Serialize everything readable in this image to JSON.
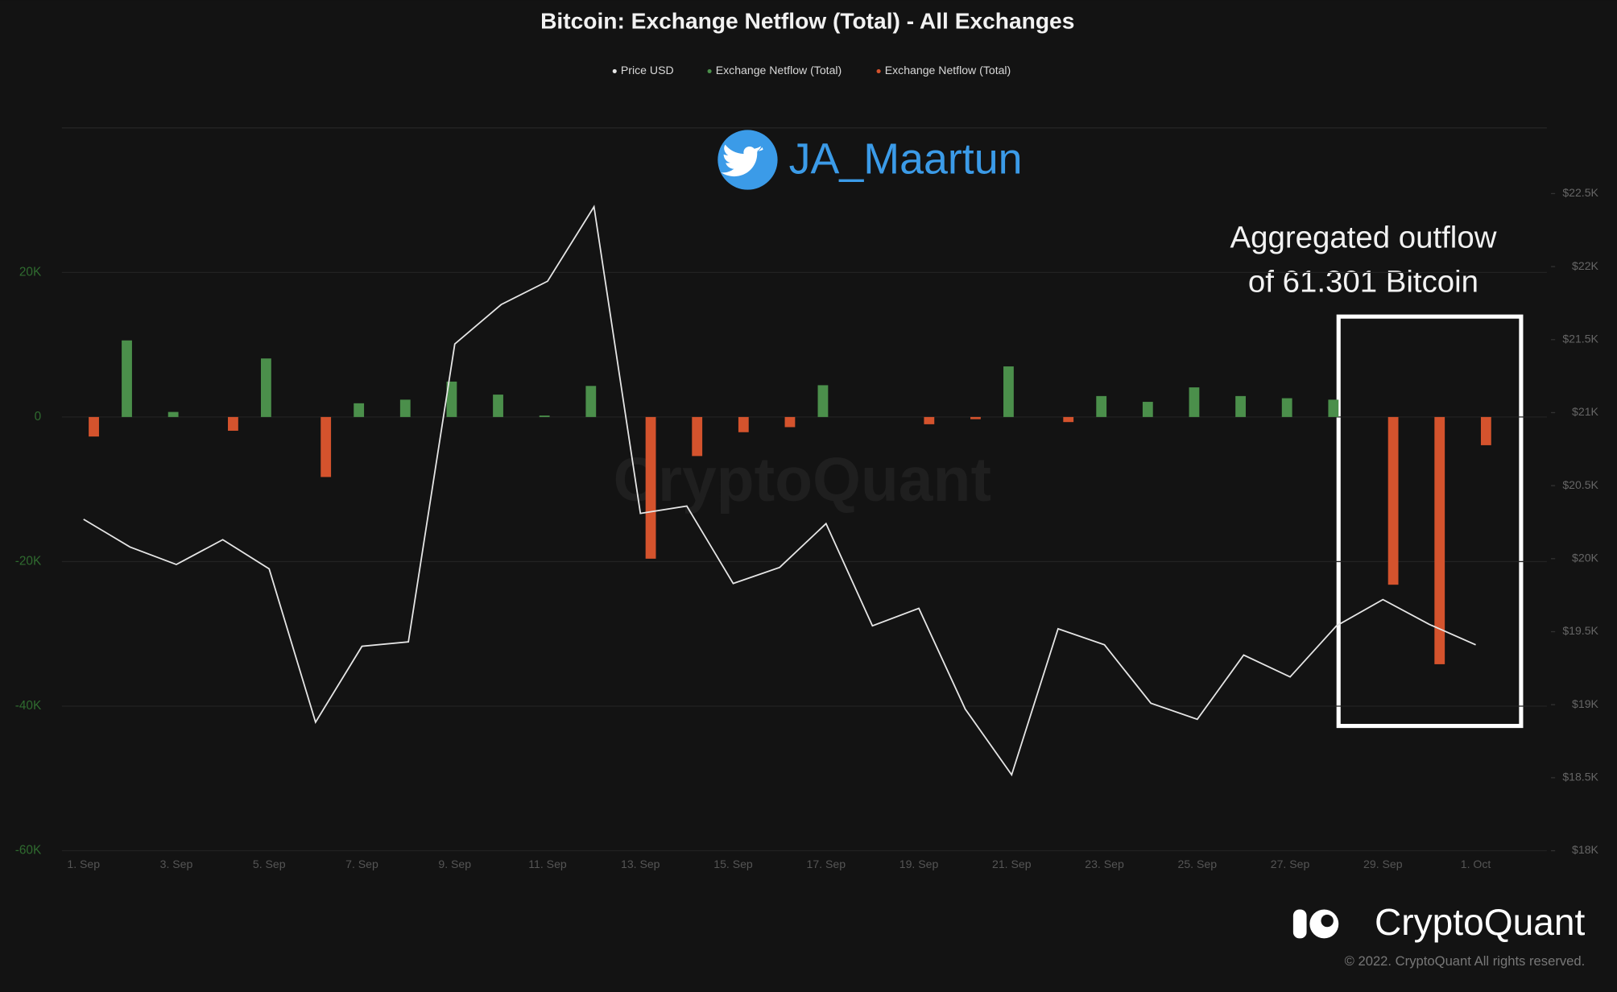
{
  "chart_data": {
    "type": "bar",
    "title": "Bitcoin: Exchange Netflow (Total) - All Exchanges",
    "watermark": "CryptoQuant",
    "handle": "JA_Maartun",
    "annotation": [
      "Aggregated outflow",
      "of 61.301 Bitcoin"
    ],
    "brand": "CryptoQuant",
    "copyright": "© 2022. CryptoQuant All rights reserved.",
    "categories": [
      "1. Sep",
      null,
      "3. Sep",
      null,
      "5. Sep",
      null,
      "7. Sep",
      null,
      "9. Sep",
      null,
      "11. Sep",
      null,
      "13. Sep",
      null,
      "15. Sep",
      null,
      "17. Sep",
      null,
      "19. Sep",
      null,
      "21. Sep",
      null,
      "23. Sep",
      null,
      "25. Sep",
      null,
      "27. Sep",
      null,
      "29. Sep",
      null,
      "1. Oct"
    ],
    "series": [
      {
        "name": "Price USD",
        "color": "#e6e6e6",
        "type": "line",
        "axis": "y2",
        "values": [
          20270,
          20080,
          19960,
          20130,
          19930,
          18880,
          19400,
          19430,
          21470,
          21740,
          21900,
          22410,
          20310,
          20360,
          19830,
          19940,
          20240,
          19540,
          19660,
          18970,
          18520,
          19520,
          19410,
          19010,
          18900,
          19340,
          19190,
          19540,
          19720,
          19550,
          19410
        ]
      },
      {
        "name": "Exchange Netflow (Total)",
        "color": "#4b8f4b",
        "values": [
          null,
          10600,
          700,
          null,
          8100,
          null,
          1900,
          2400,
          4900,
          3100,
          200,
          4300,
          null,
          null,
          null,
          null,
          4400,
          0,
          null,
          null,
          7000,
          null,
          2900,
          2100,
          4100,
          2900,
          2600,
          2400,
          null,
          null,
          null
        ]
      },
      {
        "name": "Exchange Netflow (Total)",
        "color": "#d4532d",
        "values": [
          -2700,
          null,
          null,
          -1900,
          null,
          -8300,
          null,
          null,
          null,
          null,
          null,
          null,
          -19600,
          -5400,
          -2100,
          -1400,
          null,
          null,
          -1000,
          -300,
          null,
          -700,
          null,
          null,
          null,
          null,
          null,
          null,
          -23200,
          -34200,
          -3900
        ]
      }
    ],
    "ylim": [
      -60000,
      40000
    ],
    "yticks": [
      {
        "value": -60000,
        "label": "-60K"
      },
      {
        "value": -40000,
        "label": "-40K"
      },
      {
        "value": -20000,
        "label": "-20K"
      },
      0,
      {
        "value": 20000,
        "label": "20K"
      }
    ],
    "y2lim": [
      18000,
      22950
    ],
    "y2ticks": [
      {
        "value": 18000,
        "label": "$18K"
      },
      {
        "value": 18500,
        "label": "$18.5K"
      },
      {
        "value": 19000,
        "label": "$19K"
      },
      {
        "value": 19500,
        "label": "$19.5K"
      },
      {
        "value": 20000,
        "label": "$20K"
      },
      {
        "value": 20500,
        "label": "$20.5K"
      },
      {
        "value": 21000,
        "label": "$21K"
      },
      {
        "value": 21500,
        "label": "$21.5K"
      },
      {
        "value": 22000,
        "label": "$22K"
      },
      {
        "value": 22500,
        "label": "$22.5K"
      }
    ],
    "grid": true
  }
}
